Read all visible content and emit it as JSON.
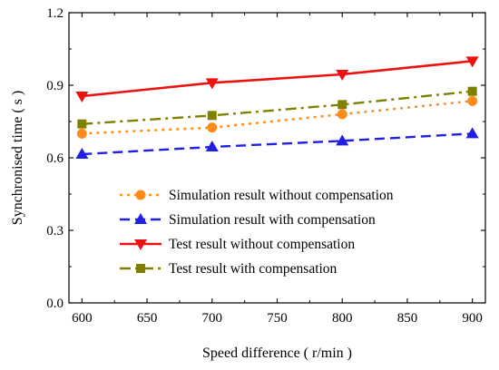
{
  "chart_data": {
    "type": "line",
    "xlabel": "Speed difference ( r/min )",
    "ylabel": "Synchronised time ( s )",
    "xlim": [
      590,
      910
    ],
    "ylim": [
      0.0,
      1.2
    ],
    "xticks": [
      600,
      650,
      700,
      750,
      800,
      850,
      900
    ],
    "yticks": [
      0.0,
      0.3,
      0.6,
      0.9,
      1.2
    ],
    "ytick_labels": [
      "0.0",
      "0.3",
      "0.6",
      "0.9",
      "1.2"
    ],
    "grid": false,
    "legend_position": "lower-right",
    "x": [
      600,
      700,
      800,
      900
    ],
    "series": [
      {
        "name": "Simulation result without compensation",
        "values": [
          0.7,
          0.725,
          0.78,
          0.835
        ],
        "color": "#ff8c1a",
        "line_style": "dotted",
        "marker": "circle"
      },
      {
        "name": "Simulation result with compensation",
        "values": [
          0.615,
          0.645,
          0.67,
          0.7
        ],
        "color": "#1f1fe6",
        "line_style": "dashed",
        "marker": "triangle-up"
      },
      {
        "name": "Test  result without compensation",
        "values": [
          0.855,
          0.91,
          0.945,
          1.0
        ],
        "color": "#ee1111",
        "line_style": "solid",
        "marker": "triangle-down"
      },
      {
        "name": "Test  result with compensation",
        "values": [
          0.74,
          0.775,
          0.82,
          0.875
        ],
        "color": "#808000",
        "line_style": "dashdot",
        "marker": "square"
      }
    ]
  }
}
